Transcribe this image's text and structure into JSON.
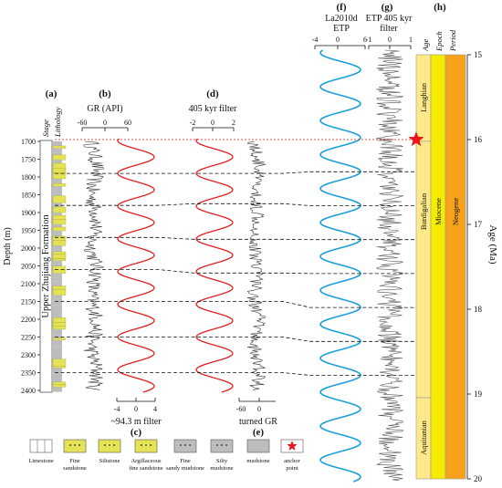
{
  "panels": {
    "a": "(a)",
    "b": "(b)",
    "c": "(c)",
    "d": "(d)",
    "e": "(e)",
    "f": "(f)",
    "g": "(g)",
    "h": "(h)"
  },
  "labels": {
    "stage": "Stage",
    "lithology": "Lithology",
    "formation": "Upper Zhujiang Formation",
    "depth_axis": "Depth (m)",
    "gr": "GR (API)",
    "filter_94": "~94.3 m filter",
    "filter_405": "405 kyr filter",
    "turned_gr": "turned GR",
    "la2010d_line1": "La2010d",
    "la2010d_line2": "ETP",
    "etp405_line1": "ETP 405 kyr",
    "etp405_line2": "filter",
    "age_col": "Age",
    "epoch_col": "Epoch",
    "period_col": "Period",
    "age_axis": "Age (Ma)",
    "langhian": "Langhian",
    "burdigalian": "Burdigalian",
    "aquitanian": "Aquitanian",
    "miocene": "Miocene",
    "neogene": "Neogene"
  },
  "legend": [
    {
      "key": "limestone",
      "label": "Limestone"
    },
    {
      "key": "fine-sandstone",
      "label": "Fine sandstone"
    },
    {
      "key": "siltstone",
      "label": "Siltstone"
    },
    {
      "key": "argillaceous-fine-sandstone",
      "label": "Argillaceous fine sandstone"
    },
    {
      "key": "fine-sandy-mudstone",
      "label": "Fine sandy mudstone"
    },
    {
      "key": "silty-mudstone",
      "label": "Silty mudstone"
    },
    {
      "key": "mudstone",
      "label": "mudstone"
    },
    {
      "key": "anchor-point",
      "label": "anchor point"
    }
  ],
  "colors": {
    "filter_curve": "#e02020",
    "la2010d_curve": "#1a9fd8",
    "log_curve": "#333333",
    "age_stage": "#fde98a",
    "epoch": "#f5ec00",
    "period": "#f7a21b",
    "anchor": "#e8161b",
    "sandstone": "#e4e357"
  },
  "chart_data": {
    "type": "line",
    "depth_axis": {
      "label": "Depth (m)",
      "range": [
        1700,
        2400
      ],
      "ticks": [
        1700,
        1750,
        1800,
        1850,
        1900,
        1950,
        2000,
        2050,
        2100,
        2150,
        2200,
        2250,
        2300,
        2350,
        2400
      ]
    },
    "age_axis": {
      "label": "Age (Ma)",
      "range": [
        15,
        20
      ],
      "ticks": [
        15,
        16,
        17,
        18,
        19,
        20
      ]
    },
    "gr_axis": {
      "label": "GR (API)",
      "range": [
        -60,
        60
      ],
      "ticks": [
        -60,
        0,
        60
      ]
    },
    "filter_94_axis": {
      "label": "~94.3 m filter",
      "range": [
        -4,
        4
      ],
      "ticks": [
        -4,
        0,
        4
      ]
    },
    "filter_405_axis": {
      "label": "405 kyr filter",
      "range": [
        -2,
        2
      ],
      "ticks": [
        -2,
        0,
        2
      ]
    },
    "turned_gr_axis": {
      "label": "turned GR",
      "range": [
        -60,
        60
      ],
      "ticks": [
        -60,
        0
      ]
    },
    "la2010d_axis": {
      "label": "La2010d ETP",
      "range": [
        -4,
        6
      ],
      "ticks": [
        -4,
        0,
        6
      ]
    },
    "etp405_axis": {
      "label": "ETP 405 kyr filter",
      "range": [
        -1,
        1
      ],
      "ticks": [
        -1,
        0,
        1
      ]
    },
    "filter_94_cycle_minima_depth_m": [
      1790,
      1880,
      1970,
      2060,
      2150,
      2250,
      2350
    ],
    "filter_405_cycle_minima_depth_m": [
      1790,
      1875,
      1975,
      2070,
      2150,
      2250,
      2350
    ],
    "cycle_boundaries_age_ma": [
      16.38,
      16.78,
      17.18,
      17.58,
      17.98,
      18.38,
      18.78
    ],
    "anchor_point": {
      "age_ma": 16.0,
      "depth_m": 1700
    },
    "stages": [
      {
        "name": "Langhian",
        "age_range_ma": [
          15.0,
          16.0
        ]
      },
      {
        "name": "Burdigalian",
        "age_range_ma": [
          16.0,
          19.0
        ]
      },
      {
        "name": "Aquitanian",
        "age_range_ma": [
          19.0,
          20.0
        ]
      }
    ],
    "epoch": {
      "name": "Miocene",
      "age_range_ma": [
        15.0,
        20.0
      ]
    },
    "period": {
      "name": "Neogene",
      "age_range_ma": [
        15.0,
        20.0
      ]
    }
  }
}
